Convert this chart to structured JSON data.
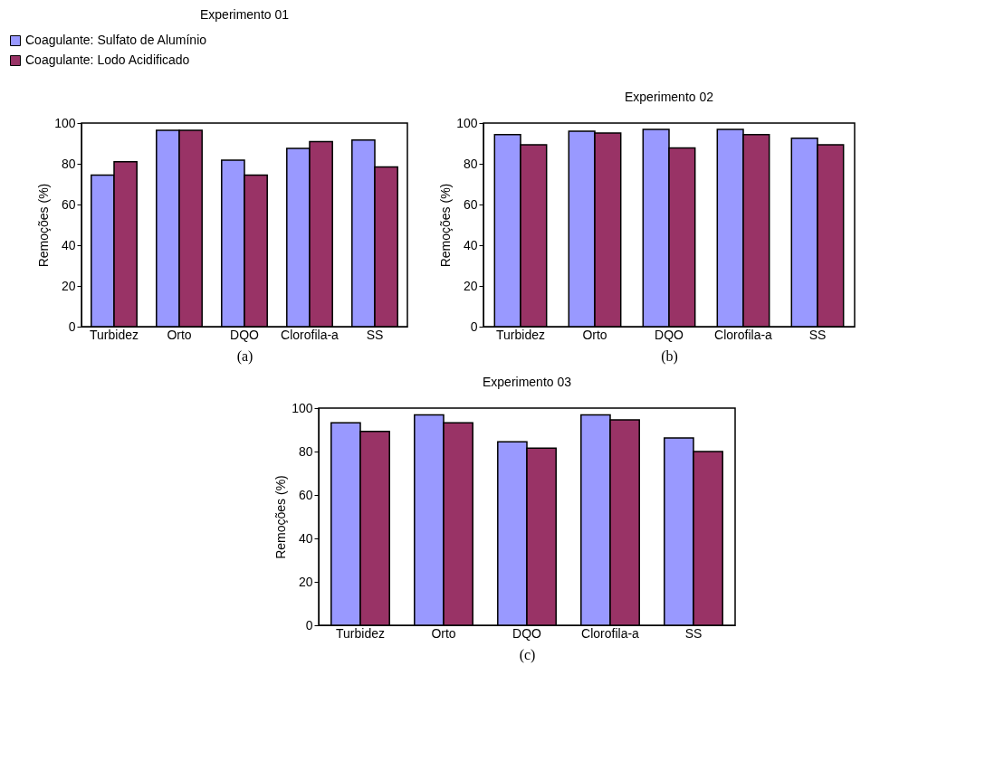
{
  "chart_data": [
    {
      "type": "bar",
      "title": "Experimento 01",
      "ylabel": "Remoções (%)",
      "annotations": [
        "(a)"
      ],
      "categories": [
        "Turbidez",
        "Orto",
        "DQO",
        "Clorofila-a",
        "SS"
      ],
      "ylim": [
        0,
        100
      ],
      "yticks": [
        0,
        20,
        40,
        60,
        80,
        100
      ],
      "legend": "top left",
      "series": [
        {
          "name": "Coagulante: Sulfato de Alumínio",
          "color": "#9999ff",
          "values": [
            74.4,
            96.5,
            81.8,
            87.6,
            91.7
          ]
        },
        {
          "name": "Coagulante: Lodo Acidificado",
          "color": "#993366",
          "values": [
            81,
            96.5,
            74.4,
            90.9,
            78.5
          ]
        }
      ]
    },
    {
      "type": "bar",
      "title": "Experimento 02",
      "ylabel": "Remoções (%)",
      "annotations": [
        "(b)"
      ],
      "categories": [
        "Turbidez",
        "Orto",
        "DQO",
        "Clorofila-a",
        "SS"
      ],
      "ylim": [
        0,
        100
      ],
      "yticks": [
        0,
        20,
        40,
        60,
        80,
        100
      ],
      "series": [
        {
          "color": "#9999ff",
          "values": [
            94.3,
            96,
            96.9,
            96.9,
            92.6
          ]
        },
        {
          "color": "#993366",
          "values": [
            89.3,
            95.1,
            87.8,
            94.3,
            89.3
          ]
        }
      ]
    },
    {
      "type": "bar",
      "title": "Experimento 03",
      "ylabel": "Remoções (%)",
      "annotations": [
        "(c)"
      ],
      "categories": [
        "Turbidez",
        "Orto",
        "DQO",
        "Clorofila-a",
        "SS"
      ],
      "ylim": [
        0,
        100
      ],
      "yticks": [
        0,
        20,
        40,
        60,
        80,
        100
      ],
      "series": [
        {
          "color": "#9999ff",
          "values": [
            93.2,
            96.9,
            84.5,
            96.9,
            86.2
          ]
        },
        {
          "color": "#993366",
          "values": [
            89.3,
            93.2,
            81.6,
            94.6,
            80
          ]
        }
      ]
    }
  ]
}
